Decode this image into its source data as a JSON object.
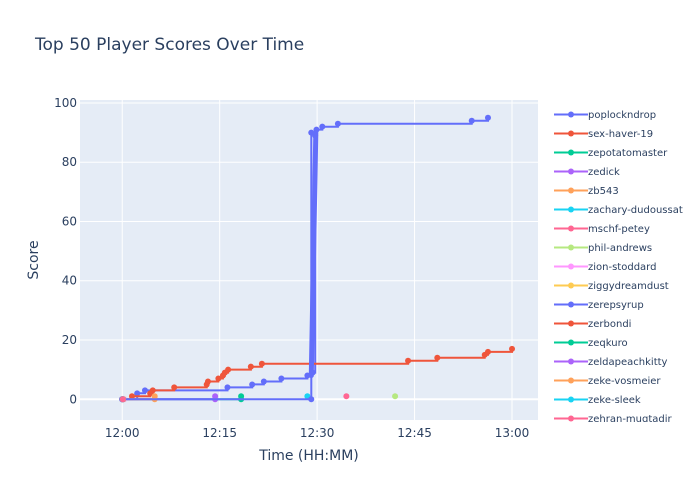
{
  "chart_data": {
    "type": "line",
    "title": "Top 50 Player Scores Over Time",
    "xlabel": "Time (HH:MM)",
    "ylabel": "Score",
    "x_range_minutes": [
      -6.5,
      64
    ],
    "y_range": [
      -7,
      101
    ],
    "x_ticks": [
      {
        "minutes": 0,
        "label": "12:00"
      },
      {
        "minutes": 15,
        "label": "12:15"
      },
      {
        "minutes": 30,
        "label": "12:30"
      },
      {
        "minutes": 45,
        "label": "12:45"
      },
      {
        "minutes": 60,
        "label": "13:00"
      }
    ],
    "y_ticks": [
      {
        "value": 0,
        "label": "0"
      },
      {
        "value": 20,
        "label": "20"
      },
      {
        "value": 40,
        "label": "40"
      },
      {
        "value": 60,
        "label": "60"
      },
      {
        "value": 80,
        "label": "80"
      },
      {
        "value": 100,
        "label": "100"
      }
    ],
    "grid": true,
    "legend_position": "right",
    "plot_background": "#e5ecf6",
    "series": [
      {
        "name": "poplockndrop",
        "color": "#636efa",
        "line_width": 2,
        "points": [
          [
            0,
            0
          ],
          [
            2.3,
            2
          ],
          [
            3.5,
            3
          ],
          [
            16.2,
            4
          ],
          [
            20,
            5
          ],
          [
            21.8,
            6
          ],
          [
            24.5,
            7
          ],
          [
            28.5,
            8
          ],
          [
            29.3,
            9
          ],
          [
            29.7,
            89
          ],
          [
            29.9,
            91
          ],
          [
            30.8,
            92
          ],
          [
            33.2,
            93
          ],
          [
            53.8,
            94
          ],
          [
            56.3,
            95
          ]
        ]
      },
      {
        "name": "sex-haver-19",
        "color": "#ef553b",
        "line_width": 2,
        "points": [
          [
            0,
            0
          ],
          [
            1.5,
            1
          ],
          [
            4.3,
            2
          ],
          [
            4.7,
            3
          ],
          [
            8,
            4
          ],
          [
            13,
            5
          ],
          [
            13.2,
            6
          ],
          [
            14.8,
            7
          ],
          [
            15.5,
            8
          ],
          [
            15.8,
            9
          ],
          [
            16.3,
            10
          ],
          [
            19.8,
            11
          ],
          [
            21.5,
            12
          ],
          [
            44,
            13
          ],
          [
            48.5,
            14
          ],
          [
            55.8,
            15
          ],
          [
            56.3,
            16
          ],
          [
            60,
            17
          ]
        ]
      },
      {
        "name": "zepotatomaster",
        "color": "#00cc96",
        "line_width": 2,
        "points": [
          [
            0,
            0
          ],
          [
            18.3,
            0
          ],
          [
            18.3,
            1
          ]
        ]
      },
      {
        "name": "zedick",
        "color": "#ab63fa",
        "line_width": 2,
        "points": [
          [
            0,
            0
          ],
          [
            14.3,
            0
          ],
          [
            14.3,
            1
          ]
        ]
      },
      {
        "name": "zb543",
        "color": "#ffa15a",
        "line_width": 2,
        "points": [
          [
            0,
            0
          ],
          [
            5,
            0
          ],
          [
            5,
            1
          ]
        ]
      },
      {
        "name": "zachary-dudoussat",
        "color": "#19d3f3",
        "line_width": 2,
        "points": [
          [
            28.5,
            1
          ]
        ]
      },
      {
        "name": "mschf-petey",
        "color": "#ff6692",
        "line_width": 2,
        "points": [
          [
            34.5,
            1
          ]
        ]
      },
      {
        "name": "phil-andrews",
        "color": "#b6e880",
        "line_width": 2,
        "points": [
          [
            42,
            1
          ]
        ]
      },
      {
        "name": "zion-stoddard",
        "color": "#ff97ff",
        "line_width": 2,
        "points": [
          [
            0.3,
            0
          ]
        ]
      },
      {
        "name": "ziggydreamdust",
        "color": "#fecb52",
        "line_width": 2,
        "points": [
          [
            0.2,
            0
          ]
        ]
      },
      {
        "name": "zerepsyrup",
        "color": "#636efa",
        "line_width": 2,
        "points": [
          [
            0,
            0
          ],
          [
            29.1,
            0
          ],
          [
            29.1,
            90
          ]
        ]
      },
      {
        "name": "zerbondi",
        "color": "#ef553b",
        "line_width": 2,
        "points": [
          [
            0.1,
            0
          ]
        ]
      },
      {
        "name": "zeqkuro",
        "color": "#00cc96",
        "line_width": 2,
        "points": [
          [
            0.1,
            0
          ]
        ]
      },
      {
        "name": "zeldapeachkitty",
        "color": "#ab63fa",
        "line_width": 2,
        "points": [
          [
            0.1,
            0
          ]
        ]
      },
      {
        "name": "zeke-vosmeier",
        "color": "#ffa15a",
        "line_width": 2,
        "points": [
          [
            0.1,
            0
          ]
        ]
      },
      {
        "name": "zeke-sleek",
        "color": "#19d3f3",
        "line_width": 2,
        "points": [
          [
            0.1,
            0
          ]
        ]
      },
      {
        "name": "zehran-muqtadir",
        "color": "#ff6692",
        "line_width": 2,
        "points": [
          [
            0.1,
            0
          ]
        ]
      }
    ],
    "thick_segments": [
      {
        "series": "zerepsyrup",
        "from": [
          29.1,
          8
        ],
        "to": [
          29.8,
          90
        ],
        "width": 5
      }
    ]
  }
}
